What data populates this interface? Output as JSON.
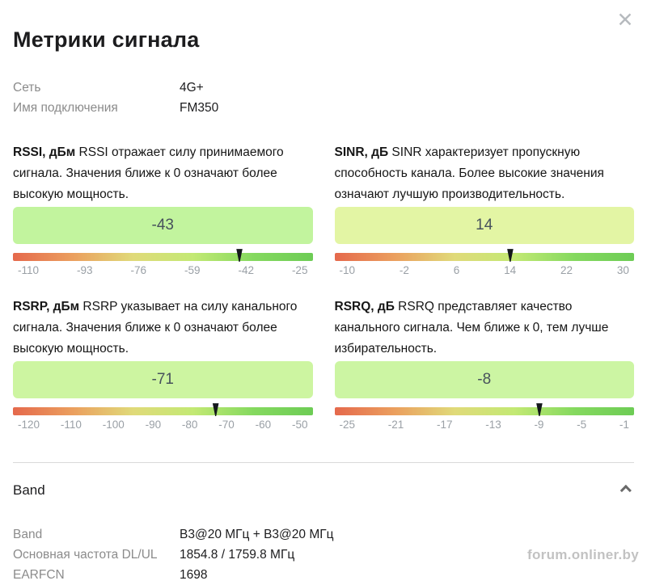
{
  "dialog": {
    "title": "Метрики сигнала"
  },
  "icons": {
    "close": "✕"
  },
  "info_rows": [
    {
      "label": "Сеть",
      "value": "4G+"
    },
    {
      "label": "Имя подключения",
      "value": "FM350"
    }
  ],
  "metrics": [
    {
      "id": "rssi",
      "title": "RSSI, дБм",
      "description": "RSSI отражает силу принимаемого сигнала. Значения ближе к 0 означают более высокую мощность.",
      "value": -43,
      "value_label": "-43",
      "min": -110,
      "max": -25,
      "ticks": [
        "-110",
        "-93",
        "-76",
        "-59",
        "-42",
        "-25"
      ],
      "box_color": "#c2f49e"
    },
    {
      "id": "sinr",
      "title": "SINR, дБ",
      "description": "SINR характеризует пропускную способность канала. Более высокие значения означают лучшую производительность.",
      "value": 14,
      "value_label": "14",
      "min": -10,
      "max": 30,
      "ticks": [
        "-10",
        "-2",
        "6",
        "14",
        "22",
        "30"
      ],
      "box_color": "#e3f5a4"
    },
    {
      "id": "rsrp",
      "title": "RSRP, дБм",
      "description": "RSRP указывает на силу канального сигнала. Значения ближе к 0 означают более высокую мощность.",
      "value": -71,
      "value_label": "-71",
      "min": -120,
      "max": -50,
      "ticks": [
        "-120",
        "-110",
        "-100",
        "-90",
        "-80",
        "-70",
        "-60",
        "-50"
      ],
      "box_color": "#cdf5a1"
    },
    {
      "id": "rsrq",
      "title": "RSRQ, дБ",
      "description": "RSRQ представляет качество канального сигнала. Чем ближе к 0, тем лучше избирательность.",
      "value": -8,
      "value_label": "-8",
      "min": -25,
      "max": -1,
      "ticks": [
        "-25",
        "-21",
        "-17",
        "-13",
        "-9",
        "-5",
        "-1"
      ],
      "box_color": "#ccf5a3"
    }
  ],
  "gauge_gradient": [
    "#e5694c",
    "#eb9f5e",
    "#e0da79",
    "#c3e974",
    "#85d95f",
    "#6dcc55"
  ],
  "band_section": {
    "heading": "Band",
    "rows": [
      {
        "label": "Band",
        "value": "B3@20 МГц + B3@20 МГц"
      },
      {
        "label": "Основная частота DL/UL",
        "value": "1854.8 / 1759.8 МГц"
      },
      {
        "label": "EARFCN",
        "value": "1698"
      }
    ]
  },
  "watermark": "forum.onliner.by"
}
